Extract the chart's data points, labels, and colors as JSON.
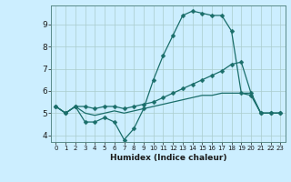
{
  "title": "",
  "xlabel": "Humidex (Indice chaleur)",
  "bg_color": "#cceeff",
  "line_color": "#1a6e6a",
  "grid_color": "#aacccc",
  "xlim": [
    -0.5,
    23.5
  ],
  "ylim": [
    3.7,
    9.85
  ],
  "xticks": [
    0,
    1,
    2,
    3,
    4,
    5,
    6,
    7,
    8,
    9,
    10,
    11,
    12,
    13,
    14,
    15,
    16,
    17,
    18,
    19,
    20,
    21,
    22,
    23
  ],
  "yticks": [
    4,
    5,
    6,
    7,
    8,
    9
  ],
  "line1_x": [
    0,
    1,
    2,
    3,
    4,
    5,
    6,
    7,
    8,
    9,
    10,
    11,
    12,
    13,
    14,
    15,
    16,
    17,
    18,
    19,
    20,
    21,
    22,
    23
  ],
  "line1_y": [
    5.3,
    5.0,
    5.3,
    4.6,
    4.6,
    4.8,
    4.6,
    3.8,
    4.3,
    5.2,
    6.5,
    7.6,
    8.5,
    9.4,
    9.6,
    9.5,
    9.4,
    9.4,
    8.7,
    5.9,
    5.8,
    5.0,
    5.0,
    5.0
  ],
  "line2_x": [
    0,
    1,
    2,
    3,
    4,
    5,
    6,
    7,
    8,
    9,
    10,
    11,
    12,
    13,
    14,
    15,
    16,
    17,
    18,
    19,
    20,
    21,
    22,
    23
  ],
  "line2_y": [
    5.3,
    5.0,
    5.3,
    5.3,
    5.2,
    5.3,
    5.3,
    5.2,
    5.3,
    5.4,
    5.5,
    5.7,
    5.9,
    6.1,
    6.3,
    6.5,
    6.7,
    6.9,
    7.2,
    7.3,
    5.9,
    5.0,
    5.0,
    5.0
  ],
  "line3_x": [
    0,
    1,
    2,
    3,
    4,
    5,
    6,
    7,
    8,
    9,
    10,
    11,
    12,
    13,
    14,
    15,
    16,
    17,
    18,
    19,
    20,
    21,
    22,
    23
  ],
  "line3_y": [
    5.3,
    5.0,
    5.3,
    5.0,
    4.9,
    5.0,
    5.1,
    5.0,
    5.1,
    5.2,
    5.3,
    5.4,
    5.5,
    5.6,
    5.7,
    5.8,
    5.8,
    5.9,
    5.9,
    5.9,
    5.9,
    5.0,
    5.0,
    5.0
  ]
}
